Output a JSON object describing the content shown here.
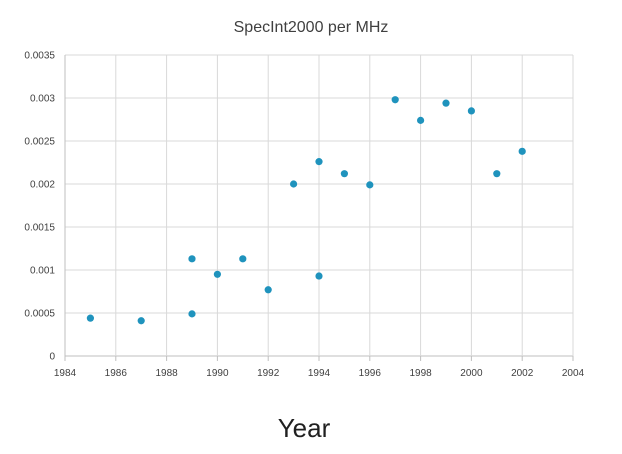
{
  "colors": {
    "marker": "#1f93bd",
    "grid": "#d9d9d9",
    "text": "#404040"
  },
  "chart_data": {
    "type": "scatter",
    "title": "SpecInt2000 per MHz",
    "xlabel": "Year",
    "ylabel": "",
    "xlim": [
      1984,
      2004
    ],
    "ylim": [
      0,
      0.0035
    ],
    "xticks": [
      "1984",
      "1986",
      "1988",
      "1990",
      "1992",
      "1994",
      "1996",
      "1998",
      "2000",
      "2002",
      "2004"
    ],
    "yticks": [
      "0",
      "0.0005",
      "0.001",
      "0.0015",
      "0.002",
      "0.0025",
      "0.003",
      "0.0035"
    ],
    "grid": true,
    "series": [
      {
        "name": "SpecInt2000 per MHz",
        "x": [
          1985,
          1987,
          1989,
          1989,
          1990,
          1991,
          1992,
          1993,
          1994,
          1994,
          1995,
          1996,
          1997,
          1998,
          1999,
          2000,
          2001,
          2002
        ],
        "y": [
          0.00044,
          0.00041,
          0.00049,
          0.00113,
          0.00095,
          0.00113,
          0.00077,
          0.002,
          0.00226,
          0.00093,
          0.00212,
          0.00199,
          0.00298,
          0.00274,
          0.00294,
          0.00285,
          0.00212,
          0.00238
        ]
      }
    ]
  }
}
